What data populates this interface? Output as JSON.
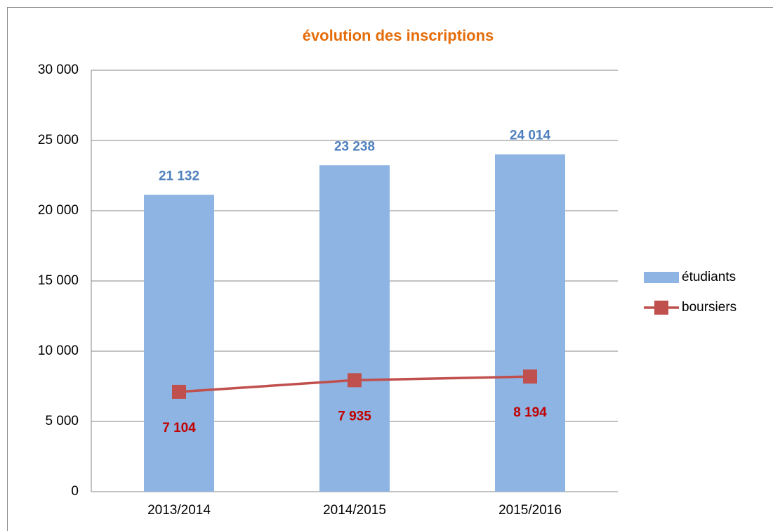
{
  "chart_data": {
    "type": "combo",
    "title": "évolution des inscriptions",
    "categories": [
      "2013/2014",
      "2014/2015",
      "2015/2016"
    ],
    "series": [
      {
        "name": "étudiants",
        "type": "bar",
        "color": "#8eb4e3",
        "label_color": "#4f81bd",
        "values": [
          21132,
          23238,
          24014
        ],
        "value_labels": [
          "21 132",
          "23 238",
          "24 014"
        ]
      },
      {
        "name": "boursiers",
        "type": "line",
        "color": "#c0504d",
        "label_color": "#c00000",
        "values": [
          7104,
          7935,
          8194
        ],
        "value_labels": [
          "7 104",
          "7 935",
          "8 194"
        ]
      }
    ],
    "ylim": [
      0,
      30000
    ],
    "yticks": [
      {
        "value": 0,
        "label": "0"
      },
      {
        "value": 5000,
        "label": "5 000"
      },
      {
        "value": 10000,
        "label": "10 000"
      },
      {
        "value": 15000,
        "label": "15 000"
      },
      {
        "value": 20000,
        "label": "20 000"
      },
      {
        "value": 25000,
        "label": "25 000"
      },
      {
        "value": 30000,
        "label": "30 000"
      }
    ],
    "grid": true,
    "legend": "right"
  }
}
